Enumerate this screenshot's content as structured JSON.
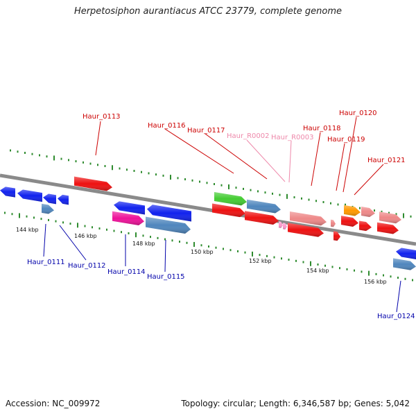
{
  "title": "Herpetosiphon aurantiacus ATCC 23779, complete genome",
  "footer": {
    "accession": "Accession: NC_009972",
    "topology": "Topology: circular; Length: 6,346,587 bp; Genes: 5,042"
  },
  "colors": {
    "backbone": "#8a8a8a",
    "tick": "#2e8b2e",
    "forward_label": "#cc0000",
    "reverse_label": "#0000aa",
    "rna_label": "#ee88aa",
    "forward_cds": "#ee1111",
    "forward_pseudo": "#ee8888",
    "forward_rna": "#ff99cc",
    "forward_green": "#44cc33",
    "forward_orange": "#ff9900",
    "reverse_cds": "#1122ee",
    "reverse_steel": "#4f86bd",
    "reverse_magenta": "#ee1199"
  },
  "scale": {
    "tick_labels": [
      "144 kbp",
      "146 kbp",
      "148 kbp",
      "150 kbp",
      "152 kbp",
      "154 kbp",
      "156 kbp"
    ]
  },
  "labels": {
    "forward": [
      "Haur_0113",
      "Haur_0116",
      "Haur_0117",
      "Haur_0118",
      "Haur_0119",
      "Haur_0120",
      "Haur_0121"
    ],
    "rna": [
      "Haur_R0002",
      "Haur_R0003"
    ],
    "reverse": [
      "Haur_0111",
      "Haur_0112",
      "Haur_0114",
      "Haur_0115",
      "Haur_0124"
    ]
  }
}
